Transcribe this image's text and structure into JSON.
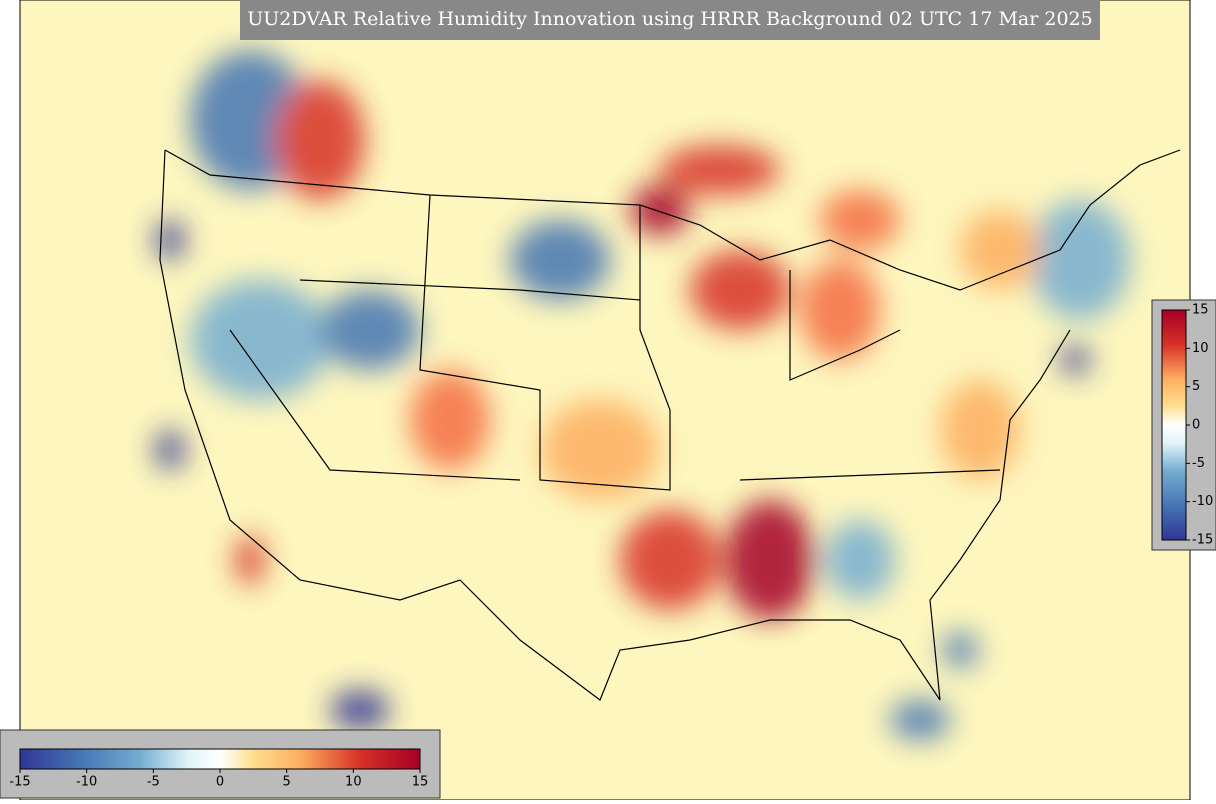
{
  "title": "UU2DVAR Relative Humidity Innovation using HRRR Background 02 UTC 17 Mar 2025",
  "colorbar_horizontal": {
    "ticks": [
      -15,
      -10,
      -5,
      0,
      5,
      10,
      15
    ]
  },
  "colorbar_vertical": {
    "ticks": [
      15,
      10,
      5,
      0,
      -5,
      -10,
      -15
    ]
  }
}
